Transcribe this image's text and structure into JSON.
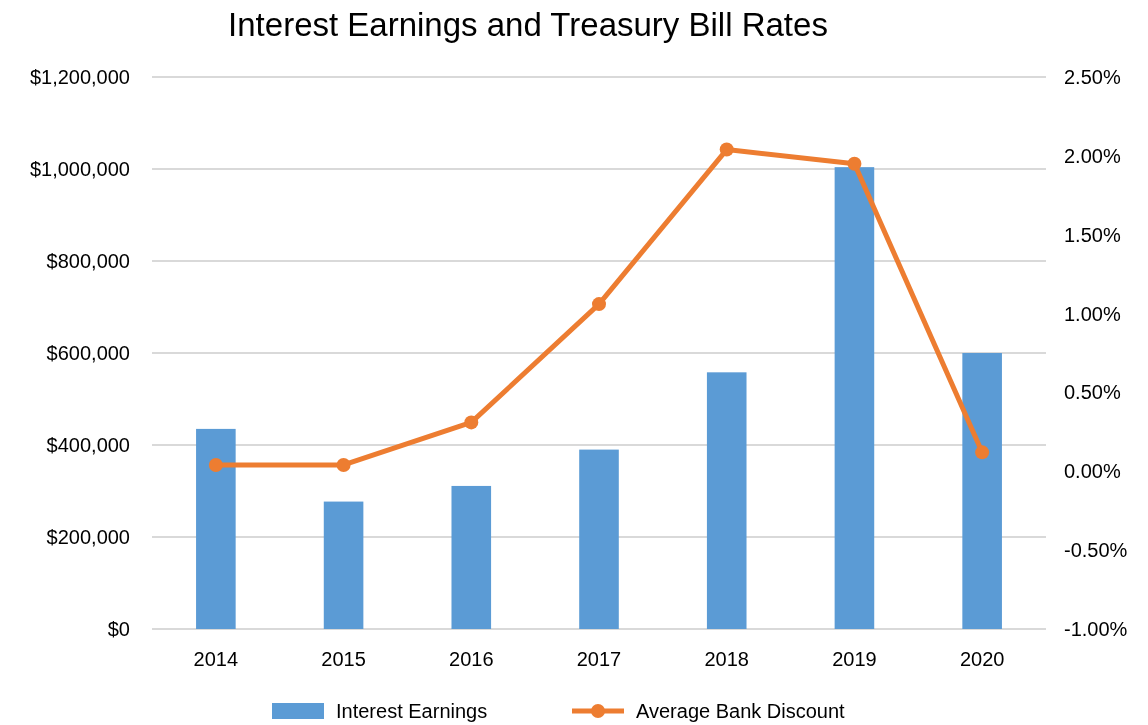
{
  "chart_data": {
    "type": "bar",
    "title": "Interest Earnings and Treasury Bill Rates",
    "categories": [
      "2014",
      "2015",
      "2016",
      "2017",
      "2018",
      "2019",
      "2020"
    ],
    "series": [
      {
        "name": "Interest Earnings",
        "color": "#5b9bd5",
        "values": [
          435000,
          277000,
          311000,
          390000,
          558000,
          1004000,
          600000
        ]
      },
      {
        "name": "Average Bank Discount",
        "type": "line",
        "axis": "y2",
        "color": "#ed7d31",
        "marker": "circle",
        "values": [
          0.04,
          0.04,
          0.31,
          1.06,
          2.04,
          1.95,
          0.12
        ]
      }
    ],
    "ylim": [
      0,
      1200000
    ],
    "yticks": [
      {
        "value": 0,
        "label": "$0"
      },
      {
        "value": 200000,
        "label": "$200,000"
      },
      {
        "value": 400000,
        "label": "$400,000"
      },
      {
        "value": 600000,
        "label": "$600,000"
      },
      {
        "value": 800000,
        "label": "$800,000"
      },
      {
        "value": 1000000,
        "label": "$1,000,000"
      },
      {
        "value": 1200000,
        "label": "$1,200,000"
      }
    ],
    "y2lim": [
      -1,
      2.5
    ],
    "y2ticks": [
      {
        "value": -1,
        "label": "-1.00%"
      },
      {
        "value": -0.5,
        "label": "-0.50%"
      },
      {
        "value": 0,
        "label": "0.00%"
      },
      {
        "value": 0.5,
        "label": "0.50%"
      },
      {
        "value": 1,
        "label": "1.00%"
      },
      {
        "value": 1.5,
        "label": "1.50%"
      },
      {
        "value": 2,
        "label": "2.00%"
      },
      {
        "value": 2.5,
        "label": "2.50%"
      }
    ],
    "grid": "y",
    "legend": "bottom"
  }
}
